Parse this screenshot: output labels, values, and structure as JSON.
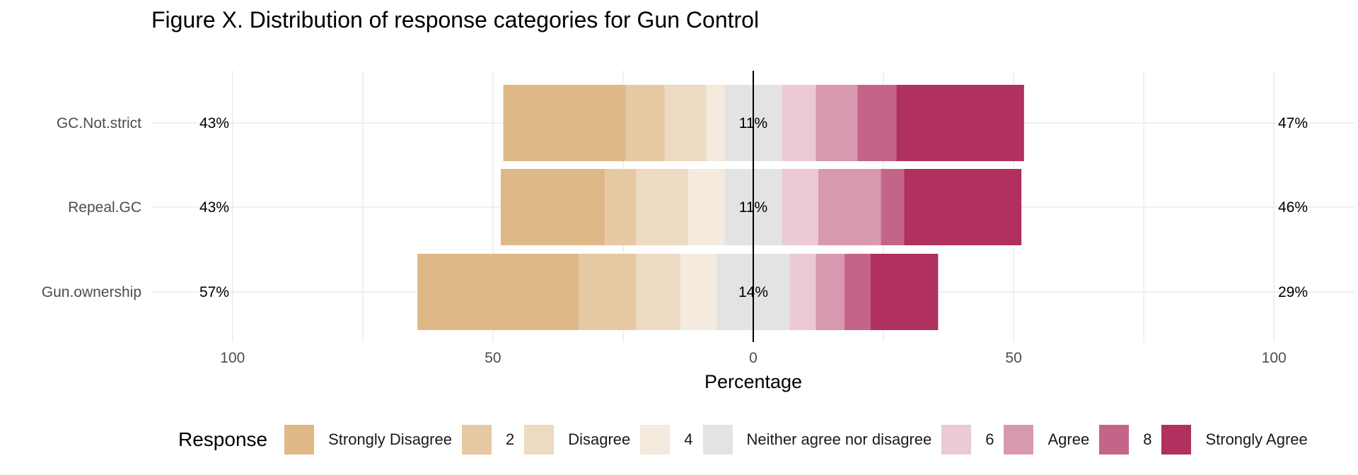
{
  "title": "Figure X. Distribution of response categories for Gun Control",
  "chart_data": {
    "type": "bar",
    "orientation": "horizontal",
    "stacked": "diverging",
    "title": "Figure X. Distribution of response categories for Gun Control",
    "xlabel": "Percentage",
    "ylabel": "",
    "xlim": [
      -100,
      100
    ],
    "xticks": [
      100,
      50,
      0,
      50,
      100
    ],
    "grid": true,
    "legend_title": "Response",
    "legend_position": "bottom",
    "categories": [
      "GC.Not.strict",
      "Repeal.GC",
      "Gun.ownership"
    ],
    "series": [
      {
        "name": "Strongly Disagree",
        "color": "#DFB888",
        "values": [
          23.5,
          20,
          31
        ]
      },
      {
        "name": "2",
        "color": "#E6C8A3",
        "values": [
          7.5,
          6,
          11
        ]
      },
      {
        "name": "Disagree",
        "color": "#EDDAC2",
        "values": [
          8,
          10,
          8.5
        ]
      },
      {
        "name": "4",
        "color": "#F4EADD",
        "values": [
          3.5,
          7,
          7
        ]
      },
      {
        "name": "Neither agree nor disagree",
        "color": "#E3E3E3",
        "values": [
          11,
          11,
          14
        ]
      },
      {
        "name": "6",
        "color": "#EBC9D6",
        "values": [
          6.5,
          7,
          5
        ]
      },
      {
        "name": "Agree",
        "color": "#D898B0",
        "values": [
          8,
          12,
          5.5
        ]
      },
      {
        "name": "8",
        "color": "#C56489",
        "values": [
          7.5,
          4.5,
          5
        ]
      },
      {
        "name": "Strongly Agree",
        "color": "#B0305F",
        "values": [
          24.5,
          22.5,
          13
        ]
      }
    ],
    "left_labels": [
      "43%",
      "43%",
      "57%"
    ],
    "center_labels": [
      "11%",
      "11%",
      "14%"
    ],
    "right_labels": [
      "47%",
      "46%",
      "29%"
    ]
  }
}
